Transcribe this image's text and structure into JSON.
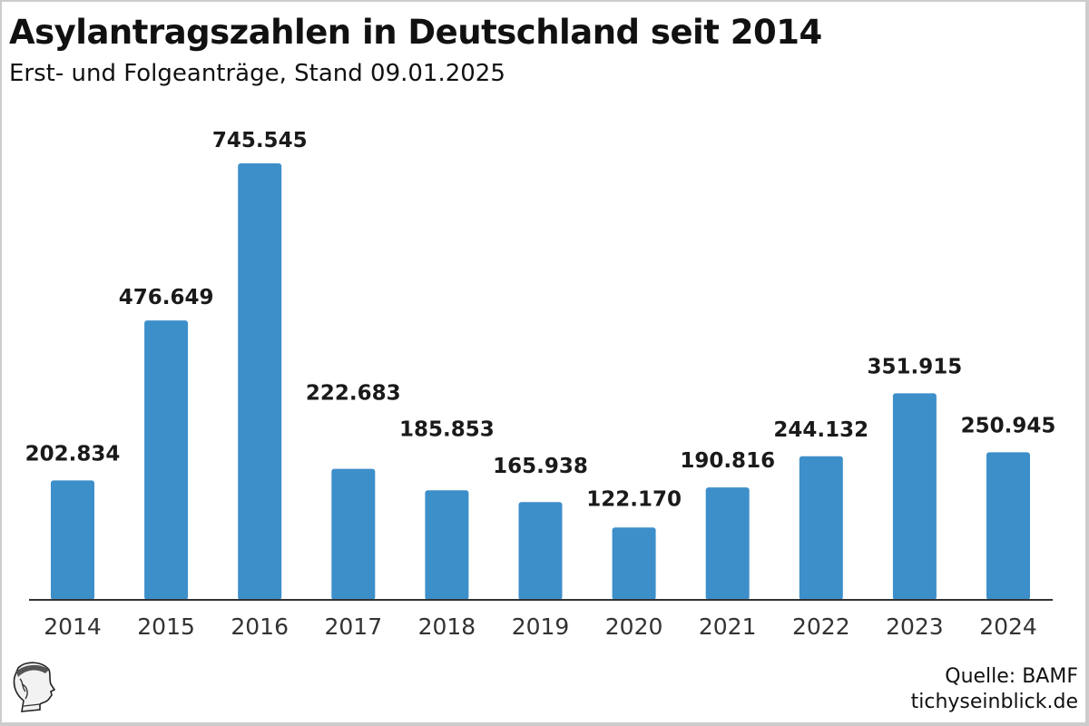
{
  "header": {
    "title": "Asylantragszahlen in Deutschland seit 2014",
    "subtitle": "Erst- und Folgeanträge, Stand 09.01.2025"
  },
  "footer": {
    "source": "Quelle: BAMF",
    "site": "tichyseinblick.de",
    "logo_icon": "hermes-head-logo-icon"
  },
  "colors": {
    "bar": "#3d8fca",
    "axis": "#333333"
  },
  "chart_data": {
    "type": "bar",
    "title": "Asylantragszahlen in Deutschland seit 2014",
    "subtitle": "Erst- und Folgeanträge, Stand 09.01.2025",
    "xlabel": "",
    "ylabel": "",
    "categories": [
      "2014",
      "2015",
      "2016",
      "2017",
      "2018",
      "2019",
      "2020",
      "2021",
      "2022",
      "2023",
      "2024"
    ],
    "values": [
      202834,
      476649,
      745545,
      222683,
      185853,
      165938,
      122170,
      190816,
      244132,
      351915,
      250945
    ],
    "value_labels": [
      "202.834",
      "476.649",
      "745.545",
      "222.683",
      "185.853",
      "165.938",
      "122.170",
      "190.816",
      "244.132",
      "351.915",
      "250.945"
    ],
    "ylim": [
      0,
      745545
    ],
    "grid": false,
    "legend": "none",
    "y_axis_visible": false
  }
}
